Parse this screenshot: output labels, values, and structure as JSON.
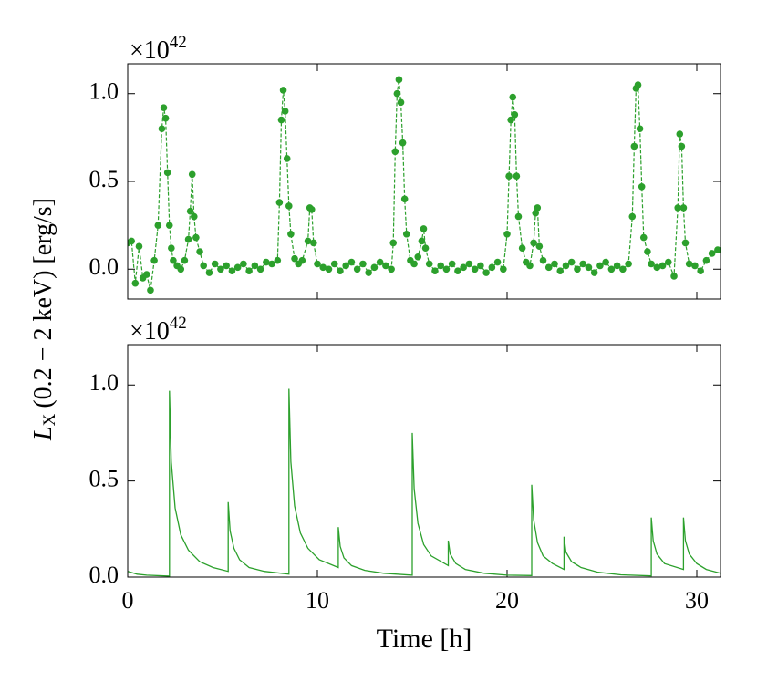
{
  "ylabel": {
    "main": "L",
    "sub": "X",
    "rest": "(0.2 − 2 keV) [erg/s]"
  },
  "chart_data": [
    {
      "type": "line",
      "markers": true,
      "linestyle": "dashed",
      "color": "#2ca02c",
      "offset_text": {
        "base": "×10",
        "exp": "42"
      },
      "xlim": [
        0,
        31.25
      ],
      "xticks": [
        0,
        10,
        20,
        30
      ],
      "show_xticklabels": false,
      "ylim": [
        -0.17,
        1.17
      ],
      "yticks": [
        {
          "value": 0,
          "label": "0.0"
        },
        0.5,
        {
          "value": 1,
          "label": "1.0"
        }
      ],
      "x": [
        0,
        0.2,
        0.4,
        0.6,
        0.8,
        1.0,
        1.2,
        1.4,
        1.6,
        1.8,
        1.9,
        2.0,
        2.1,
        2.2,
        2.3,
        2.4,
        2.6,
        2.8,
        3.0,
        3.2,
        3.3,
        3.4,
        3.5,
        3.6,
        3.8,
        4.0,
        4.3,
        4.6,
        4.9,
        5.2,
        5.5,
        5.8,
        6.1,
        6.4,
        6.7,
        7.0,
        7.3,
        7.6,
        7.9,
        8.0,
        8.1,
        8.2,
        8.3,
        8.4,
        8.5,
        8.6,
        8.8,
        9.0,
        9.2,
        9.5,
        9.6,
        9.7,
        9.8,
        10.0,
        10.3,
        10.6,
        10.9,
        11.2,
        11.5,
        11.8,
        12.1,
        12.4,
        12.7,
        13.0,
        13.3,
        13.6,
        13.9,
        14.0,
        14.1,
        14.2,
        14.3,
        14.4,
        14.5,
        14.6,
        14.7,
        14.9,
        15.1,
        15.3,
        15.5,
        15.6,
        15.7,
        15.9,
        16.2,
        16.5,
        16.8,
        17.1,
        17.4,
        17.7,
        18.0,
        18.3,
        18.6,
        18.9,
        19.2,
        19.5,
        19.8,
        20.0,
        20.1,
        20.2,
        20.3,
        20.4,
        20.5,
        20.6,
        20.8,
        21.0,
        21.2,
        21.4,
        21.5,
        21.6,
        21.7,
        21.9,
        22.2,
        22.5,
        22.8,
        23.1,
        23.4,
        23.7,
        24.0,
        24.3,
        24.6,
        24.9,
        25.2,
        25.5,
        25.8,
        26.1,
        26.4,
        26.6,
        26.7,
        26.8,
        26.9,
        27.0,
        27.1,
        27.2,
        27.4,
        27.6,
        27.9,
        28.2,
        28.5,
        28.8,
        29.0,
        29.1,
        29.2,
        29.3,
        29.4,
        29.6,
        29.9,
        30.2,
        30.5,
        30.8,
        31.1
      ],
      "values": [
        0.15,
        0.16,
        -0.08,
        0.13,
        -0.05,
        -0.03,
        -0.12,
        0.05,
        0.25,
        0.8,
        0.92,
        0.86,
        0.55,
        0.25,
        0.12,
        0.05,
        0.02,
        0.0,
        0.05,
        0.17,
        0.33,
        0.54,
        0.3,
        0.18,
        0.1,
        0.02,
        -0.02,
        0.03,
        0.0,
        0.02,
        -0.01,
        0.01,
        0.03,
        -0.01,
        0.02,
        0.0,
        0.04,
        0.03,
        0.05,
        0.38,
        0.85,
        1.02,
        0.9,
        0.63,
        0.36,
        0.2,
        0.06,
        0.03,
        0.05,
        0.16,
        0.35,
        0.34,
        0.15,
        0.03,
        0.01,
        0.0,
        0.03,
        -0.01,
        0.02,
        0.04,
        0.0,
        0.03,
        -0.02,
        0.01,
        0.04,
        0.02,
        0.0,
        0.15,
        0.67,
        1.0,
        1.08,
        0.95,
        0.72,
        0.4,
        0.2,
        0.05,
        0.03,
        0.07,
        0.16,
        0.23,
        0.12,
        0.03,
        -0.01,
        0.02,
        0.0,
        0.03,
        -0.01,
        0.01,
        0.03,
        0.0,
        0.02,
        -0.02,
        0.01,
        0.04,
        0.0,
        0.2,
        0.53,
        0.85,
        0.98,
        0.88,
        0.53,
        0.3,
        0.12,
        0.04,
        0.02,
        0.15,
        0.32,
        0.35,
        0.13,
        0.05,
        0.01,
        0.03,
        -0.01,
        0.02,
        0.04,
        0.0,
        0.03,
        0.01,
        -0.02,
        0.02,
        0.04,
        0.0,
        0.02,
        0.0,
        0.03,
        0.3,
        0.7,
        1.03,
        1.05,
        0.8,
        0.47,
        0.18,
        0.1,
        0.03,
        0.01,
        0.02,
        0.04,
        -0.04,
        0.35,
        0.77,
        0.7,
        0.35,
        0.15,
        0.03,
        0.02,
        -0.01,
        0.05,
        0.09,
        0.11
      ]
    },
    {
      "type": "line",
      "markers": false,
      "linestyle": "solid",
      "color": "#2ca02c",
      "offset_text": {
        "base": "×10",
        "exp": "42"
      },
      "xlabel": "Time [h]",
      "xlim": [
        0,
        31.25
      ],
      "xticks": [
        0,
        10,
        20,
        30
      ],
      "show_xticklabels": true,
      "ylim": [
        0,
        1.21
      ],
      "yticks": [
        {
          "value": 0,
          "label": "0.0"
        },
        0.5,
        {
          "value": 1,
          "label": "1.0"
        }
      ],
      "x": [
        0,
        0.5,
        1.0,
        2.2,
        2.2,
        2.3,
        2.5,
        2.8,
        3.2,
        3.8,
        4.5,
        5.3,
        5.3,
        5.4,
        5.6,
        5.9,
        6.4,
        7.2,
        8.5,
        8.5,
        8.6,
        8.8,
        9.1,
        9.5,
        10.1,
        11.1,
        11.1,
        11.2,
        11.4,
        11.8,
        12.5,
        13.5,
        15.0,
        15.0,
        15.1,
        15.3,
        15.6,
        16.0,
        16.9,
        16.9,
        17.0,
        17.3,
        17.8,
        18.8,
        20,
        21.3,
        21.3,
        21.4,
        21.6,
        21.9,
        22.4,
        23.0,
        23.0,
        23.1,
        23.4,
        23.9,
        24.8,
        26,
        27.6,
        27.6,
        27.7,
        27.9,
        28.3,
        29.3,
        29.3,
        29.4,
        29.6,
        30.0,
        30.5,
        31.25
      ],
      "values": [
        0.03,
        0.015,
        0.01,
        0.005,
        0.97,
        0.6,
        0.36,
        0.22,
        0.14,
        0.08,
        0.05,
        0.03,
        0.39,
        0.24,
        0.15,
        0.09,
        0.05,
        0.03,
        0.015,
        0.98,
        0.6,
        0.37,
        0.23,
        0.15,
        0.09,
        0.05,
        0.26,
        0.16,
        0.1,
        0.06,
        0.035,
        0.02,
        0.01,
        0.75,
        0.46,
        0.28,
        0.17,
        0.11,
        0.06,
        0.19,
        0.12,
        0.07,
        0.04,
        0.02,
        0.01,
        0.008,
        0.48,
        0.3,
        0.18,
        0.11,
        0.07,
        0.04,
        0.21,
        0.13,
        0.08,
        0.05,
        0.025,
        0.012,
        0.006,
        0.31,
        0.19,
        0.12,
        0.07,
        0.04,
        0.31,
        0.19,
        0.12,
        0.07,
        0.04,
        0.02
      ]
    }
  ]
}
